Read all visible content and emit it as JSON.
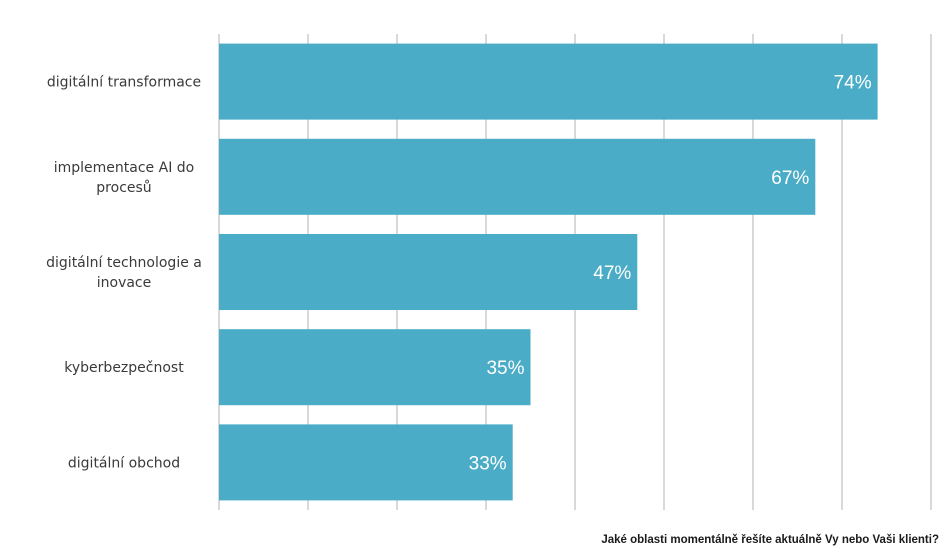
{
  "chart_data": {
    "type": "bar",
    "orientation": "horizontal",
    "categories": [
      "digitální transformace",
      "implementace AI do procesů",
      "digitální technologie a inovace",
      "kyberbezpečnost",
      "digitální obchod"
    ],
    "category_lines": [
      [
        "digitální transformace"
      ],
      [
        "implementace AI do",
        "procesů"
      ],
      [
        "digitální technologie a",
        "inovace"
      ],
      [
        "kyberbezpečnost"
      ],
      [
        "digitální obchod"
      ]
    ],
    "values": [
      74,
      67,
      47,
      35,
      33
    ],
    "value_labels": [
      "74%",
      "67%",
      "47%",
      "35%",
      "33%"
    ],
    "xlim": [
      0,
      80
    ],
    "x_gridline_step": 10,
    "grid": true,
    "bar_color": "#4aacc6",
    "gridline_color": "#d9d9d9"
  },
  "caption": "Jaké oblasti momentálně řešíte aktuálně Vy nebo Vaši klienti?"
}
